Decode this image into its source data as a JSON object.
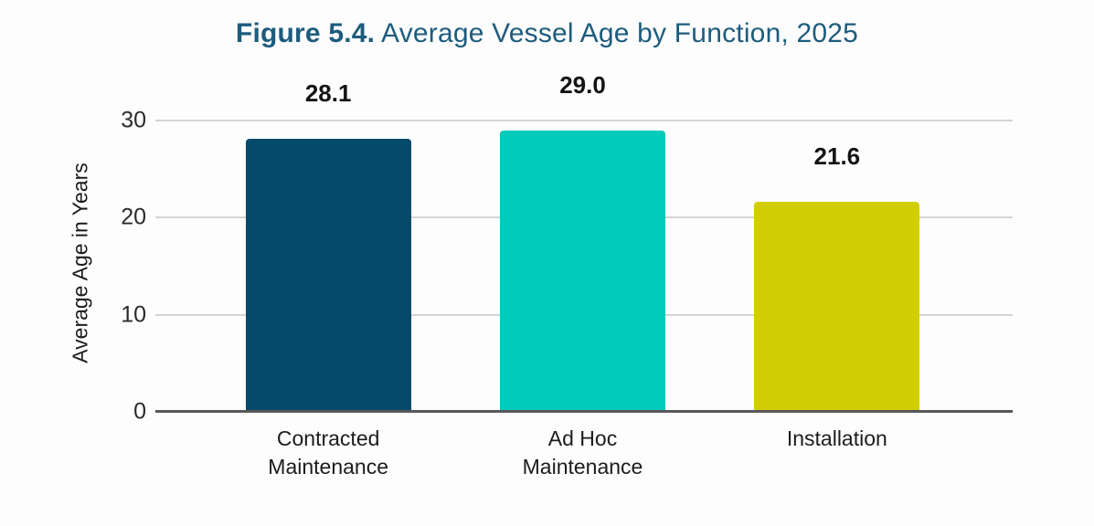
{
  "header": {
    "title_prefix": "Figure 5.4.",
    "title_rest": " Average Vessel Age by Function, 2025"
  },
  "chart_data": {
    "type": "bar",
    "title": "Figure 5.4. Average Vessel Age by Function, 2025",
    "categories": [
      "Contracted\nMaintenance",
      "Ad Hoc\nMaintenance",
      "Installation"
    ],
    "values": [
      28.1,
      29.0,
      21.6
    ],
    "data_labels": [
      "28.1",
      "29.0",
      "21.6"
    ],
    "bar_colors": [
      "#054a6b",
      "#03cbbb",
      "#d2ce05"
    ],
    "xlabel": "",
    "ylabel": "Average Age in Years",
    "ylim": [
      0,
      30
    ],
    "yticks": [
      0,
      10,
      20,
      30
    ],
    "grid": true,
    "legend": false
  },
  "colors": {
    "title": "#1d5c7d",
    "gridline": "#d4d4d4",
    "axis_line": "#58585a",
    "value_label": "#141414",
    "background": "#fdfdfd"
  }
}
